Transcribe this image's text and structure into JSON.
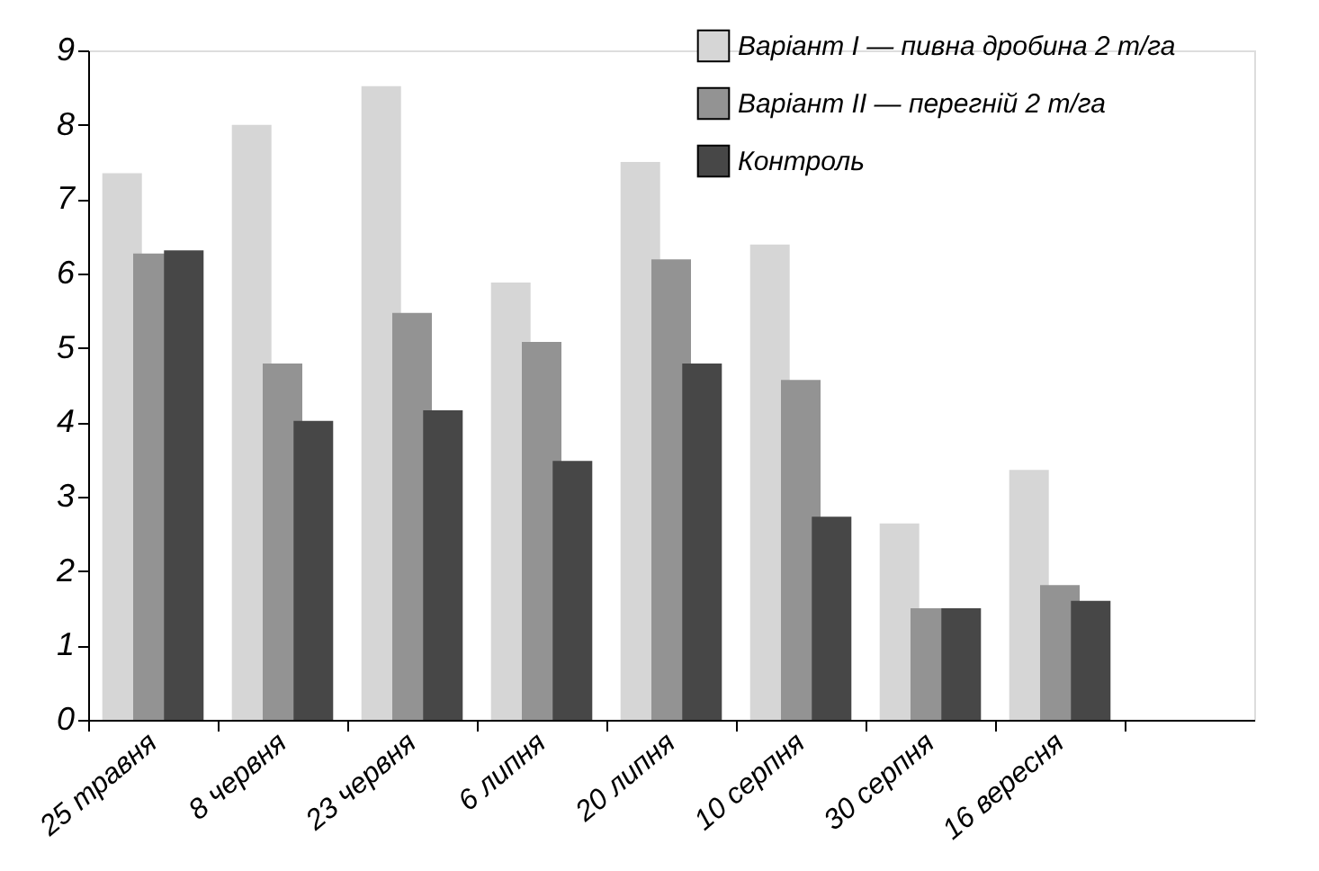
{
  "chart_data": {
    "type": "bar",
    "categories": [
      "25 травня",
      "8 червня",
      "23 червня",
      "6 липня",
      "20 липня",
      "10 серпня",
      "30 серпня",
      "16 вересня",
      null
    ],
    "series": [
      {
        "name": "Варіант I — пивна дробина 2 т/га",
        "color": "#d6d6d6",
        "values": [
          7.35,
          8.0,
          8.52,
          5.88,
          7.5,
          6.39,
          2.64,
          3.36,
          null
        ]
      },
      {
        "name": "Варіант II — перегній 2 т/га",
        "color": "#939393",
        "values": [
          6.27,
          4.79,
          5.47,
          5.08,
          6.19,
          4.57,
          1.5,
          1.81,
          null
        ]
      },
      {
        "name": "Контроль",
        "color": "#474747",
        "values": [
          6.31,
          4.02,
          4.16,
          3.48,
          4.79,
          2.73,
          1.5,
          1.6,
          null
        ]
      }
    ],
    "ylim": [
      0,
      9
    ],
    "yticks": [
      0,
      1,
      2,
      3,
      4,
      5,
      6,
      7,
      8,
      9
    ],
    "grid": false,
    "legend": "top right"
  }
}
